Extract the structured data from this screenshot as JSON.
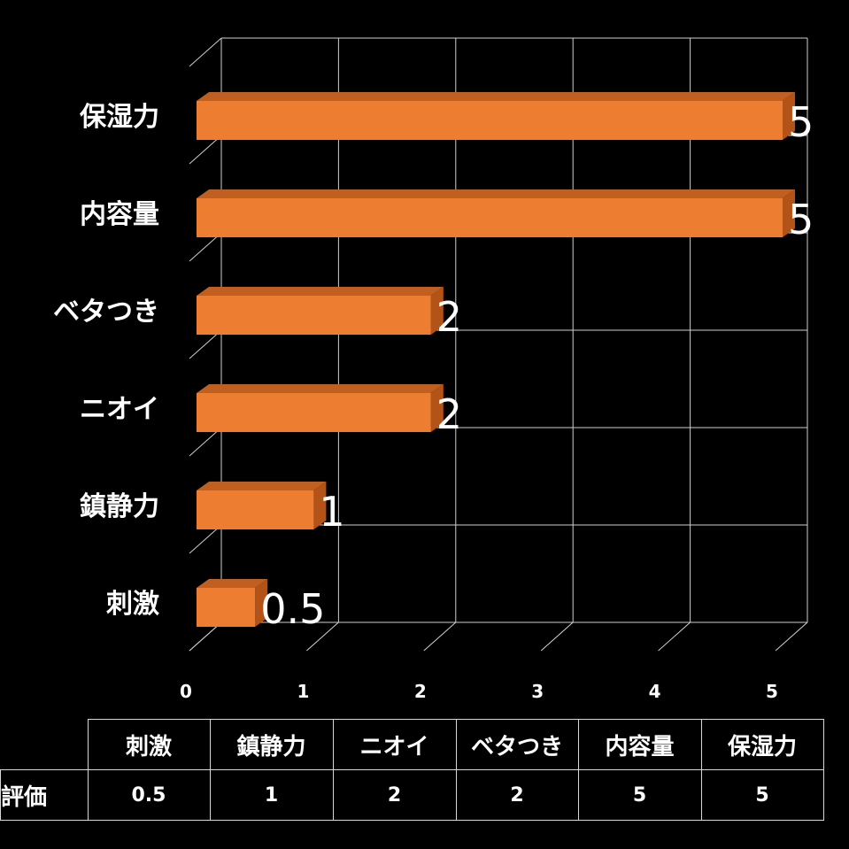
{
  "chart_data": {
    "type": "bar",
    "orientation": "horizontal",
    "categories": [
      "刺激",
      "鎮静力",
      "ニオイ",
      "ベタつき",
      "内容量",
      "保湿力"
    ],
    "values": [
      0.5,
      1,
      2,
      2,
      5,
      5
    ],
    "xticks": [
      "0",
      "1",
      "2",
      "3",
      "4",
      "5"
    ],
    "xlim": [
      0,
      5
    ],
    "data_labels": [
      "0.5",
      "1",
      "2",
      "2",
      "5",
      "5"
    ],
    "grid": true,
    "bar_color": "#ed7d31",
    "bar_top_color": "#c05f1f",
    "bar_side_color": "#b35318",
    "background": "#000000"
  },
  "data_table": {
    "row_label": "評価",
    "headers": [
      "刺激",
      "鎮静力",
      "ニオイ",
      "ベタつき",
      "内容量",
      "保湿力"
    ],
    "values": [
      "0.5",
      "1",
      "2",
      "2",
      "5",
      "5"
    ]
  }
}
